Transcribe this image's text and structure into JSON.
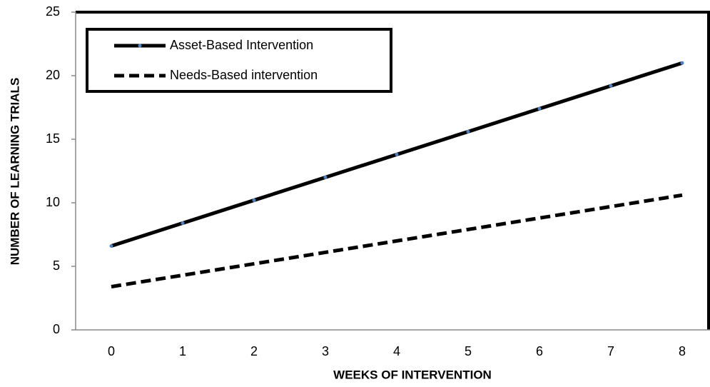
{
  "chart_data": {
    "type": "line",
    "x_label": "WEEKS OF INTERVENTION",
    "y_label": "NUMBER OF LEARNING TRIALS",
    "x": [
      0,
      1,
      2,
      3,
      4,
      5,
      6,
      7,
      8
    ],
    "series": [
      {
        "name": "Asset-Based Intervention",
        "color": "#000000",
        "dash": "solid",
        "marker_color": "#4f81bd",
        "values": [
          6.6,
          8.4,
          10.2,
          12,
          13.8,
          15.6,
          17.4,
          19.2,
          21
        ]
      },
      {
        "name": "Needs-Based intervention",
        "color": "#000000",
        "dash": "dashed",
        "values": [
          3.4,
          4.3,
          5.2,
          6.1,
          7.0,
          7.9,
          8.8,
          9.7,
          10.6
        ]
      }
    ],
    "xlim": [
      -0.5,
      8.5
    ],
    "xticks": [
      0,
      1,
      2,
      3,
      4,
      5,
      6,
      7,
      8
    ],
    "ylim": [
      0,
      25
    ],
    "yticks": [
      0,
      5,
      10,
      15,
      20,
      25
    ],
    "grid": false,
    "legend": "upper left"
  }
}
